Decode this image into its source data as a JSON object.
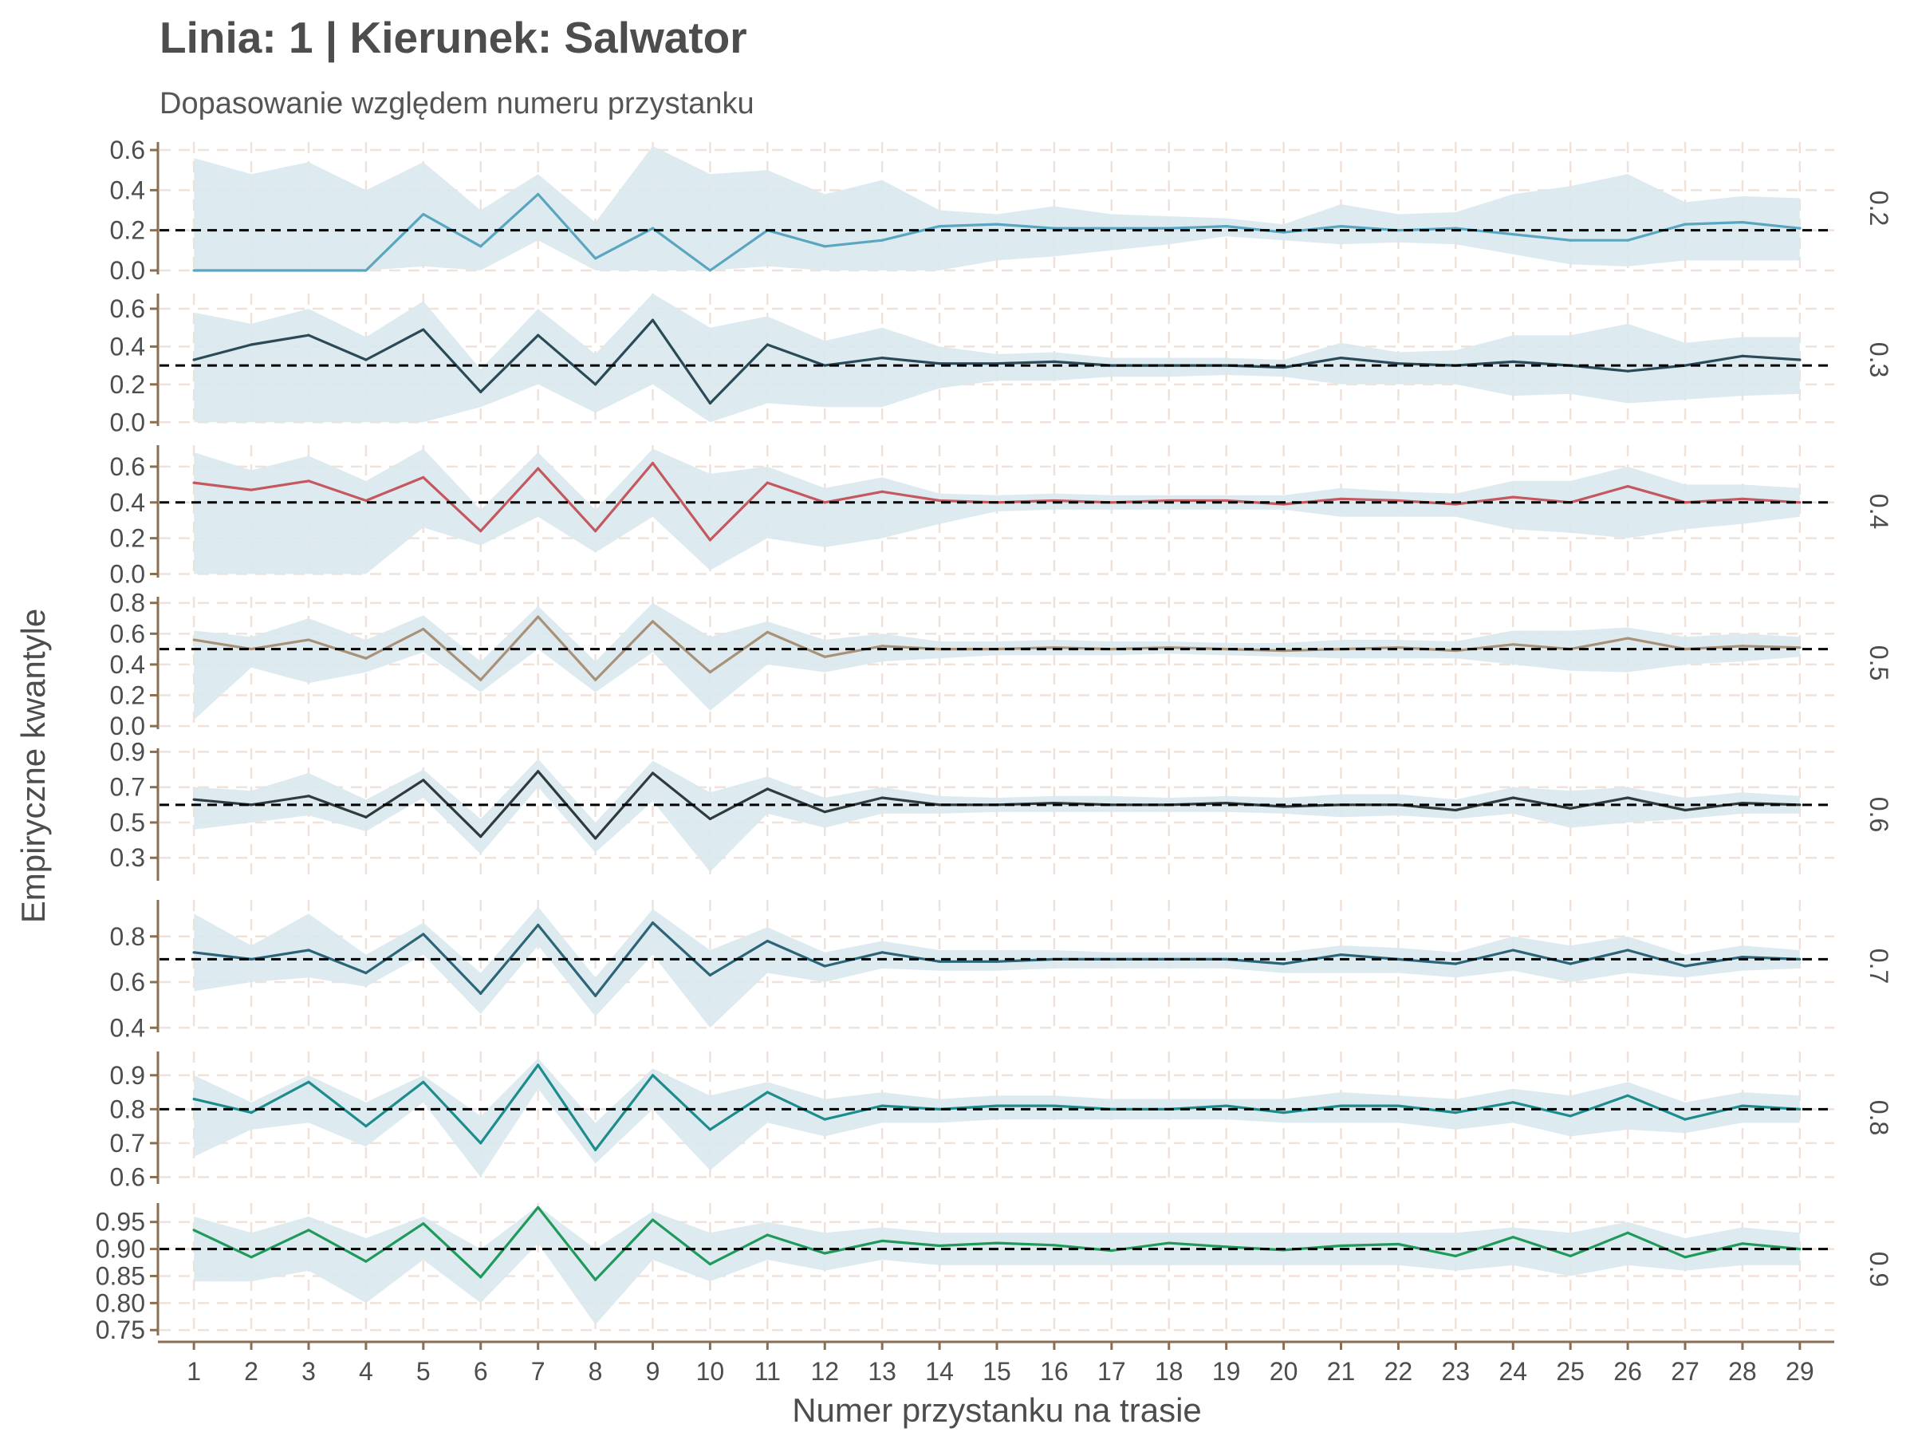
{
  "chart_data": {
    "type": "line",
    "title": "Linia: 1 | Kierunek: Salwator",
    "subtitle": "Dopasowanie względem numeru przystanku",
    "xlabel": "Numer przystanku na trasie",
    "ylabel": "Empiryczne kwantyle",
    "x": [
      1,
      2,
      3,
      4,
      5,
      6,
      7,
      8,
      9,
      10,
      11,
      12,
      13,
      14,
      15,
      16,
      17,
      18,
      19,
      20,
      21,
      22,
      23,
      24,
      25,
      26,
      27,
      28,
      29
    ],
    "x_tick_labels": [
      "1",
      "2",
      "3",
      "4",
      "5",
      "6",
      "7",
      "8",
      "9",
      "10",
      "11",
      "12",
      "13",
      "14",
      "15",
      "16",
      "17",
      "18",
      "19",
      "20",
      "21",
      "22",
      "23",
      "24",
      "25",
      "26",
      "27",
      "28",
      "29"
    ],
    "xlim": [
      0.4,
      29.6
    ],
    "grid": true,
    "reference_line_style": "dashed",
    "band_color": "#d9e9ee",
    "reference_color": "#000000",
    "axis_color": "#8b6f52",
    "grid_color": "#f0e2d8",
    "facets": [
      {
        "strip_label": "0.2",
        "quantile": 0.2,
        "color": "#5aa5bf",
        "ylim": [
          -0.02,
          0.64
        ],
        "yticks": [
          0.0,
          0.2,
          0.4,
          0.6
        ],
        "ytick_labels": [
          "0.0",
          "0.2",
          "0.4",
          "0.6"
        ],
        "values": [
          0,
          0,
          0,
          0,
          0.28,
          0.12,
          0.38,
          0.06,
          0.21,
          0,
          0.2,
          0.12,
          0.15,
          0.22,
          0.23,
          0.21,
          0.21,
          0.21,
          0.22,
          0.19,
          0.22,
          0.2,
          0.21,
          0.18,
          0.15,
          0.15,
          0.23,
          0.24,
          0.21
        ],
        "lower": [
          0,
          0,
          0,
          0,
          0.02,
          0,
          0.15,
          0,
          0,
          0,
          0.02,
          0,
          0,
          0,
          0.05,
          0.07,
          0.1,
          0.13,
          0.17,
          0.15,
          0.13,
          0.14,
          0.13,
          0.08,
          0.03,
          0.02,
          0.05,
          0.05,
          0.05
        ],
        "upper": [
          0.56,
          0.48,
          0.54,
          0.4,
          0.54,
          0.3,
          0.48,
          0.24,
          0.62,
          0.48,
          0.5,
          0.38,
          0.45,
          0.3,
          0.28,
          0.32,
          0.28,
          0.27,
          0.26,
          0.23,
          0.33,
          0.28,
          0.29,
          0.38,
          0.42,
          0.48,
          0.34,
          0.37,
          0.36
        ]
      },
      {
        "strip_label": "0.3",
        "quantile": 0.3,
        "color": "#2b4a57",
        "ylim": [
          -0.02,
          0.68
        ],
        "yticks": [
          0.0,
          0.2,
          0.4,
          0.6
        ],
        "ytick_labels": [
          "0.0",
          "0.2",
          "0.4",
          "0.6"
        ],
        "values": [
          0.33,
          0.41,
          0.46,
          0.33,
          0.49,
          0.16,
          0.46,
          0.2,
          0.54,
          0.1,
          0.41,
          0.3,
          0.34,
          0.31,
          0.31,
          0.32,
          0.3,
          0.3,
          0.3,
          0.29,
          0.34,
          0.31,
          0.3,
          0.32,
          0.3,
          0.27,
          0.3,
          0.35,
          0.33
        ],
        "lower": [
          0,
          0,
          0,
          0,
          0,
          0.08,
          0.2,
          0.05,
          0.2,
          0,
          0.1,
          0.08,
          0.08,
          0.18,
          0.22,
          0.22,
          0.24,
          0.24,
          0.25,
          0.24,
          0.2,
          0.2,
          0.2,
          0.14,
          0.15,
          0.1,
          0.12,
          0.14,
          0.15
        ],
        "upper": [
          0.58,
          0.52,
          0.6,
          0.45,
          0.64,
          0.28,
          0.6,
          0.36,
          0.68,
          0.5,
          0.56,
          0.43,
          0.5,
          0.4,
          0.36,
          0.37,
          0.34,
          0.34,
          0.34,
          0.33,
          0.42,
          0.37,
          0.38,
          0.46,
          0.46,
          0.52,
          0.42,
          0.45,
          0.45
        ]
      },
      {
        "strip_label": "0.4",
        "quantile": 0.4,
        "color": "#c5575e",
        "ylim": [
          -0.02,
          0.72
        ],
        "yticks": [
          0.0,
          0.2,
          0.4,
          0.6
        ],
        "ytick_labels": [
          "0.0",
          "0.2",
          "0.4",
          "0.6"
        ],
        "values": [
          0.51,
          0.47,
          0.52,
          0.41,
          0.54,
          0.24,
          0.59,
          0.24,
          0.62,
          0.19,
          0.51,
          0.4,
          0.46,
          0.41,
          0.4,
          0.41,
          0.4,
          0.41,
          0.41,
          0.39,
          0.42,
          0.41,
          0.39,
          0.43,
          0.4,
          0.49,
          0.4,
          0.42,
          0.4
        ],
        "lower": [
          0,
          0,
          0,
          0,
          0.26,
          0.16,
          0.32,
          0.12,
          0.32,
          0.02,
          0.2,
          0.15,
          0.2,
          0.28,
          0.35,
          0.36,
          0.36,
          0.36,
          0.36,
          0.36,
          0.32,
          0.32,
          0.32,
          0.25,
          0.23,
          0.2,
          0.25,
          0.28,
          0.32
        ],
        "upper": [
          0.68,
          0.58,
          0.66,
          0.52,
          0.7,
          0.36,
          0.68,
          0.36,
          0.7,
          0.56,
          0.6,
          0.48,
          0.54,
          0.45,
          0.44,
          0.45,
          0.44,
          0.44,
          0.44,
          0.44,
          0.48,
          0.46,
          0.45,
          0.52,
          0.52,
          0.6,
          0.5,
          0.5,
          0.48
        ]
      },
      {
        "strip_label": "0.5",
        "quantile": 0.5,
        "color": "#a99178",
        "ylim": [
          -0.02,
          0.84
        ],
        "yticks": [
          0.0,
          0.2,
          0.4,
          0.6,
          0.8
        ],
        "ytick_labels": [
          "0.0",
          "0.2",
          "0.4",
          "0.6",
          "0.8"
        ],
        "values": [
          0.56,
          0.5,
          0.56,
          0.44,
          0.63,
          0.3,
          0.71,
          0.3,
          0.68,
          0.35,
          0.61,
          0.45,
          0.52,
          0.5,
          0.5,
          0.51,
          0.5,
          0.51,
          0.5,
          0.49,
          0.5,
          0.51,
          0.49,
          0.53,
          0.5,
          0.57,
          0.5,
          0.52,
          0.51
        ],
        "lower": [
          0.04,
          0.38,
          0.28,
          0.35,
          0.48,
          0.22,
          0.5,
          0.22,
          0.48,
          0.1,
          0.4,
          0.35,
          0.42,
          0.44,
          0.46,
          0.46,
          0.46,
          0.47,
          0.46,
          0.45,
          0.44,
          0.44,
          0.44,
          0.4,
          0.36,
          0.35,
          0.4,
          0.42,
          0.45
        ],
        "upper": [
          0.62,
          0.58,
          0.7,
          0.56,
          0.72,
          0.42,
          0.78,
          0.42,
          0.8,
          0.58,
          0.68,
          0.56,
          0.6,
          0.55,
          0.55,
          0.56,
          0.55,
          0.55,
          0.54,
          0.54,
          0.56,
          0.56,
          0.55,
          0.62,
          0.62,
          0.64,
          0.58,
          0.6,
          0.58
        ]
      },
      {
        "strip_label": "0.6",
        "quantile": 0.6,
        "color": "#2e3a3d",
        "ylim": [
          0.17,
          0.92
        ],
        "yticks": [
          0.3,
          0.5,
          0.7,
          0.9
        ],
        "ytick_labels": [
          "0.3",
          "0.5",
          "0.7",
          "0.9"
        ],
        "values": [
          0.63,
          0.6,
          0.65,
          0.53,
          0.74,
          0.42,
          0.79,
          0.41,
          0.78,
          0.52,
          0.69,
          0.56,
          0.64,
          0.6,
          0.6,
          0.61,
          0.6,
          0.6,
          0.61,
          0.59,
          0.6,
          0.6,
          0.57,
          0.64,
          0.58,
          0.64,
          0.57,
          0.61,
          0.6
        ],
        "lower": [
          0.46,
          0.5,
          0.54,
          0.45,
          0.64,
          0.32,
          0.7,
          0.33,
          0.62,
          0.22,
          0.55,
          0.47,
          0.55,
          0.55,
          0.56,
          0.56,
          0.56,
          0.56,
          0.56,
          0.55,
          0.53,
          0.54,
          0.52,
          0.55,
          0.47,
          0.5,
          0.52,
          0.55,
          0.55
        ],
        "upper": [
          0.7,
          0.68,
          0.78,
          0.63,
          0.8,
          0.52,
          0.86,
          0.5,
          0.85,
          0.67,
          0.76,
          0.64,
          0.7,
          0.65,
          0.64,
          0.65,
          0.65,
          0.64,
          0.65,
          0.64,
          0.66,
          0.66,
          0.63,
          0.7,
          0.68,
          0.7,
          0.64,
          0.67,
          0.65
        ]
      },
      {
        "strip_label": "0.7",
        "quantile": 0.7,
        "color": "#2c6478",
        "ylim": [
          0.38,
          0.96
        ],
        "yticks": [
          0.4,
          0.6,
          0.8
        ],
        "ytick_labels": [
          "0.4",
          "0.6",
          "0.8"
        ],
        "values": [
          0.73,
          0.7,
          0.74,
          0.64,
          0.81,
          0.55,
          0.85,
          0.54,
          0.86,
          0.63,
          0.78,
          0.67,
          0.73,
          0.69,
          0.69,
          0.7,
          0.7,
          0.7,
          0.7,
          0.68,
          0.72,
          0.7,
          0.68,
          0.74,
          0.68,
          0.74,
          0.67,
          0.71,
          0.7
        ],
        "lower": [
          0.56,
          0.6,
          0.62,
          0.58,
          0.72,
          0.46,
          0.76,
          0.45,
          0.72,
          0.4,
          0.64,
          0.6,
          0.66,
          0.65,
          0.65,
          0.66,
          0.66,
          0.66,
          0.66,
          0.64,
          0.64,
          0.64,
          0.62,
          0.65,
          0.6,
          0.64,
          0.62,
          0.65,
          0.66
        ],
        "upper": [
          0.9,
          0.76,
          0.9,
          0.72,
          0.86,
          0.64,
          0.93,
          0.62,
          0.92,
          0.74,
          0.84,
          0.73,
          0.78,
          0.74,
          0.74,
          0.74,
          0.73,
          0.73,
          0.73,
          0.73,
          0.76,
          0.75,
          0.73,
          0.8,
          0.76,
          0.8,
          0.72,
          0.76,
          0.74
        ]
      },
      {
        "strip_label": "0.8",
        "quantile": 0.8,
        "color": "#1e8c8c",
        "ylim": [
          0.58,
          0.97
        ],
        "yticks": [
          0.6,
          0.7,
          0.8,
          0.9
        ],
        "ytick_labels": [
          "0.6",
          "0.7",
          "0.8",
          "0.9"
        ],
        "values": [
          0.83,
          0.79,
          0.88,
          0.75,
          0.88,
          0.7,
          0.93,
          0.68,
          0.9,
          0.74,
          0.85,
          0.77,
          0.81,
          0.8,
          0.81,
          0.81,
          0.8,
          0.8,
          0.81,
          0.79,
          0.81,
          0.81,
          0.79,
          0.82,
          0.78,
          0.84,
          0.77,
          0.81,
          0.8
        ],
        "lower": [
          0.66,
          0.74,
          0.76,
          0.69,
          0.82,
          0.6,
          0.86,
          0.64,
          0.8,
          0.62,
          0.76,
          0.72,
          0.76,
          0.76,
          0.77,
          0.77,
          0.77,
          0.77,
          0.77,
          0.76,
          0.76,
          0.76,
          0.74,
          0.76,
          0.72,
          0.74,
          0.73,
          0.76,
          0.76
        ],
        "upper": [
          0.9,
          0.82,
          0.9,
          0.82,
          0.9,
          0.78,
          0.95,
          0.76,
          0.92,
          0.84,
          0.88,
          0.83,
          0.85,
          0.83,
          0.84,
          0.84,
          0.83,
          0.83,
          0.83,
          0.83,
          0.85,
          0.84,
          0.83,
          0.86,
          0.84,
          0.88,
          0.82,
          0.85,
          0.84
        ]
      },
      {
        "strip_label": "0.9",
        "quantile": 0.9,
        "color": "#1f9a5b",
        "ylim": [
          0.74,
          0.985
        ],
        "yticks": [
          0.75,
          0.8,
          0.85,
          0.9,
          0.95
        ],
        "ytick_labels": [
          "0.75",
          "0.80",
          "0.85",
          "0.90",
          "0.95"
        ],
        "values": [
          0.935,
          0.885,
          0.935,
          0.877,
          0.947,
          0.848,
          0.977,
          0.843,
          0.954,
          0.872,
          0.926,
          0.892,
          0.915,
          0.906,
          0.911,
          0.907,
          0.897,
          0.911,
          0.904,
          0.898,
          0.906,
          0.909,
          0.887,
          0.922,
          0.887,
          0.93,
          0.885,
          0.91,
          0.9
        ],
        "lower": [
          0.84,
          0.84,
          0.86,
          0.8,
          0.88,
          0.8,
          0.91,
          0.76,
          0.88,
          0.84,
          0.88,
          0.86,
          0.88,
          0.87,
          0.87,
          0.87,
          0.87,
          0.87,
          0.87,
          0.87,
          0.87,
          0.87,
          0.86,
          0.87,
          0.85,
          0.87,
          0.86,
          0.87,
          0.87
        ],
        "upper": [
          0.96,
          0.93,
          0.96,
          0.92,
          0.96,
          0.9,
          0.98,
          0.9,
          0.97,
          0.93,
          0.95,
          0.93,
          0.94,
          0.93,
          0.93,
          0.93,
          0.93,
          0.93,
          0.93,
          0.93,
          0.93,
          0.93,
          0.93,
          0.94,
          0.93,
          0.95,
          0.92,
          0.94,
          0.93
        ]
      }
    ]
  }
}
